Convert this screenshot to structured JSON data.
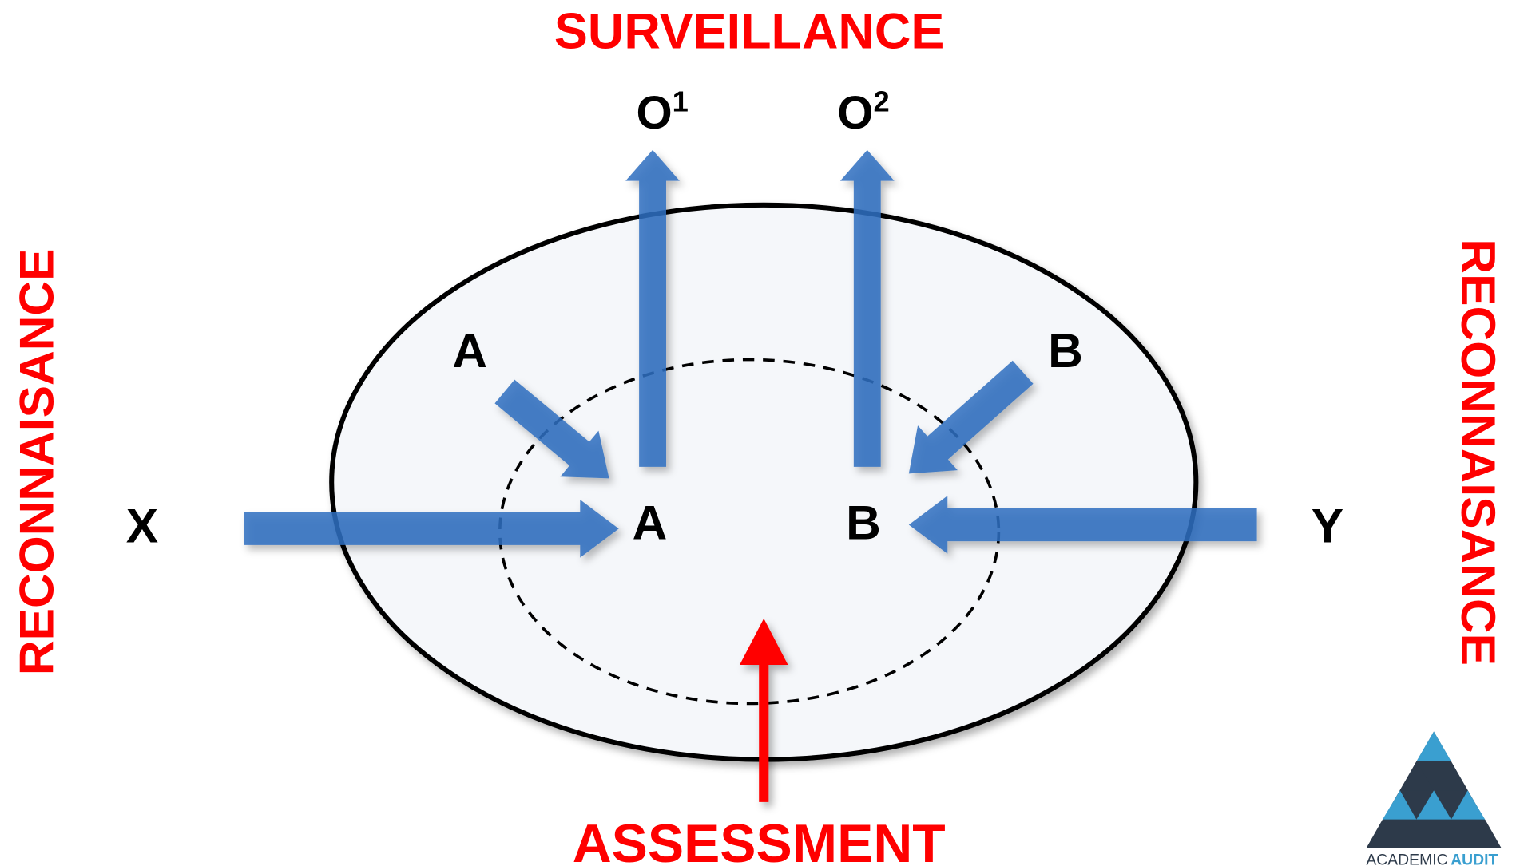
{
  "title": "SURVEILLANCE",
  "outputs": [
    {
      "label": "O",
      "sup": "1"
    },
    {
      "label": "O",
      "sup": "2"
    }
  ],
  "side_left": "RECONNAISANCE",
  "side_right": "RECONNAISANCE",
  "inputs_top": [
    "A",
    "B"
  ],
  "center": [
    "A",
    "B"
  ],
  "inputs_side": [
    "X",
    "Y"
  ],
  "bottom": "ASSESSMENT",
  "logo": {
    "word1": "ACADEMIC",
    "word2": "AUDIT"
  }
}
